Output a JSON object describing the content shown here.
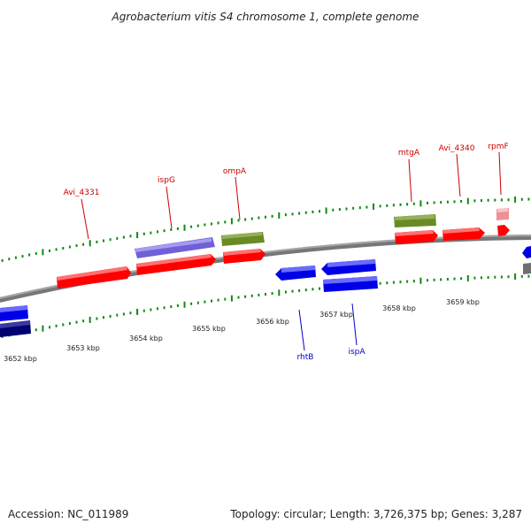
{
  "title": "Agrobacterium vitis S4 chromosome 1, complete genome",
  "footer": {
    "accession": "Accession: NC_011989",
    "summary": "Topology: circular; Length: 3,726,375 bp; Genes: 3,287"
  },
  "colors": {
    "forward_gene": "#ff0000",
    "forward_gene_light": "#f08f97",
    "reverse_gene": "#0000e6",
    "reverse_gene_dark": "#00006e",
    "trna_gene": "#6a8a26",
    "rrna_gene": "#7060d8",
    "misc_gene": "#707070",
    "backbone": "#888888",
    "tick_marks": "#118811",
    "forward_label": "#cc0000",
    "reverse_label": "#0000cc"
  },
  "scale_ticks": [
    "3652 kbp",
    "3653 kbp",
    "3654 kbp",
    "3655 kbp",
    "3656 kbp",
    "3657 kbp",
    "3658 kbp",
    "3659 kbp"
  ],
  "gene_labels": [
    {
      "name": "Avi_4331",
      "strand": "forward"
    },
    {
      "name": "ispG",
      "strand": "forward"
    },
    {
      "name": "ompA",
      "strand": "forward"
    },
    {
      "name": "mtgA",
      "strand": "forward"
    },
    {
      "name": "Avi_4340",
      "strand": "forward"
    },
    {
      "name": "rpmF",
      "strand": "forward"
    },
    {
      "name": "rhtB",
      "strand": "reverse"
    },
    {
      "name": "ispA",
      "strand": "reverse"
    }
  ]
}
